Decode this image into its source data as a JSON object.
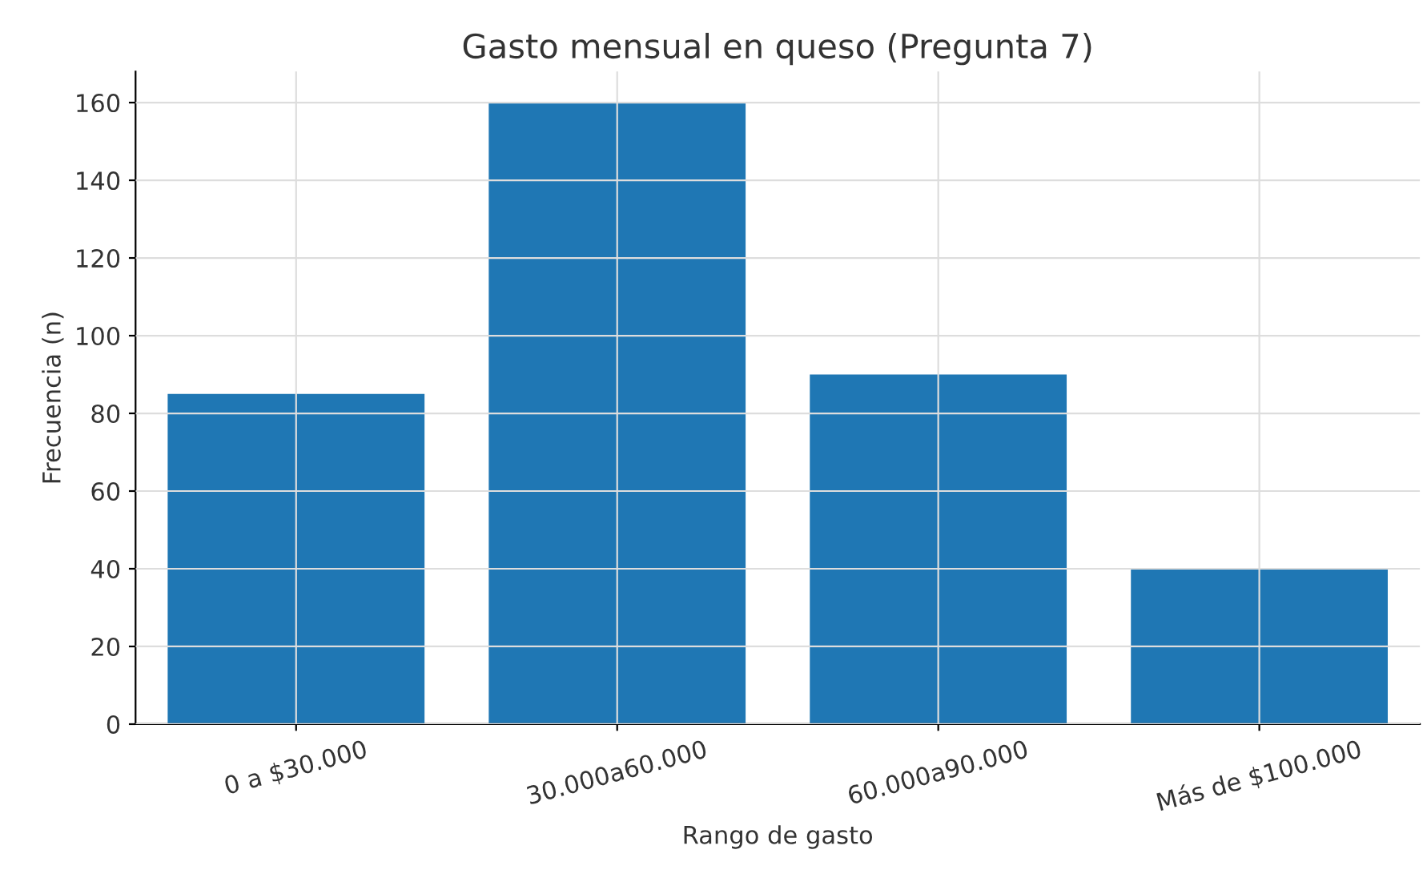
{
  "chart_data": {
    "type": "bar",
    "title": "Gasto mensual en queso (Pregunta 7)",
    "xlabel": "Rango de gasto",
    "ylabel": "Frecuencia (n)",
    "categories": [
      "0 a $30.000",
      "30.000a60.000",
      "60.000a90.000",
      "Más de $100.000"
    ],
    "values": [
      85,
      160,
      90,
      40
    ],
    "color": "#1f77b4",
    "ylim": [
      0,
      168
    ],
    "yticks": [
      0,
      20,
      40,
      60,
      80,
      100,
      120,
      140,
      160
    ],
    "grid": true
  }
}
